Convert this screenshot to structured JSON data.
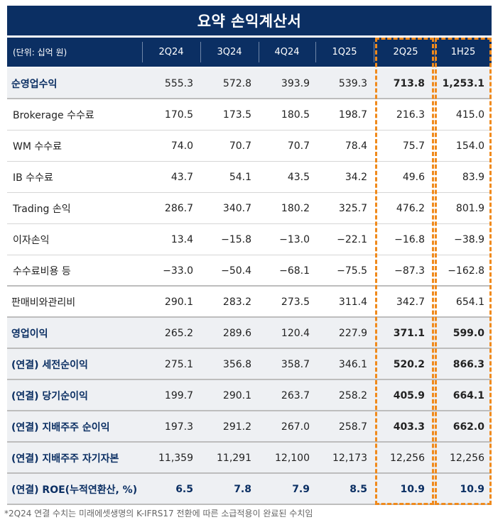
{
  "title": "요약 손익계산서",
  "unit_label": "(단위: 십억 원)",
  "columns": [
    "2Q24",
    "3Q24",
    "4Q24",
    "1Q25",
    "2Q25",
    "1H25"
  ],
  "rows": [
    {
      "label": "순영업수익",
      "values": [
        "555.3",
        "572.8",
        "393.9",
        "539.3",
        "713.8",
        "1,253.1"
      ]
    },
    {
      "label": "Brokerage 수수료",
      "values": [
        "170.5",
        "173.5",
        "180.5",
        "198.7",
        "216.3",
        "415.0"
      ]
    },
    {
      "label": "WM 수수료",
      "values": [
        "74.0",
        "70.7",
        "70.7",
        "78.4",
        "75.7",
        "154.0"
      ]
    },
    {
      "label": "IB 수수료",
      "values": [
        "43.7",
        "54.1",
        "43.5",
        "34.2",
        "49.6",
        "83.9"
      ]
    },
    {
      "label": "Trading 손익",
      "values": [
        "286.7",
        "340.7",
        "180.2",
        "325.7",
        "476.2",
        "801.9"
      ]
    },
    {
      "label": "이자손익",
      "values": [
        "13.4",
        "−15.8",
        "−13.0",
        "−22.1",
        "−16.8",
        "−38.9"
      ]
    },
    {
      "label": "수수료비용 등",
      "values": [
        "−33.0",
        "−50.4",
        "−68.1",
        "−75.5",
        "−87.3",
        "−162.8"
      ]
    },
    {
      "label": "판매비와관리비",
      "values": [
        "290.1",
        "283.2",
        "273.5",
        "311.4",
        "342.7",
        "654.1"
      ]
    },
    {
      "label": "영업이익",
      "values": [
        "265.2",
        "289.6",
        "120.4",
        "227.9",
        "371.1",
        "599.0"
      ]
    },
    {
      "label": "(연결) 세전순이익",
      "values": [
        "275.1",
        "356.8",
        "358.7",
        "346.1",
        "520.2",
        "866.3"
      ]
    },
    {
      "label": "(연결) 당기순이익",
      "values": [
        "199.7",
        "290.1",
        "263.7",
        "258.2",
        "405.9",
        "664.1"
      ]
    },
    {
      "label": "(연결) 지배주주 순이익",
      "values": [
        "197.3",
        "291.2",
        "267.0",
        "258.7",
        "403.3",
        "662.0"
      ]
    },
    {
      "label": "(연결) 지배주주 자기자본",
      "values": [
        "11,359",
        "11,291",
        "12,100",
        "12,173",
        "12,256",
        "12,256"
      ]
    },
    {
      "label": "(연결) ROE(누적연환산, %)",
      "values": [
        "6.5",
        "7.8",
        "7.9",
        "8.5",
        "10.9",
        "10.9"
      ]
    }
  ],
  "highlight_color": "#f08a1c",
  "header_color": "#0b2f63",
  "footnote": "*2Q24 연결 수치는 미래에셋생명의 K-IFRS17 전환에 따른 소급적용이 완료된 수치임"
}
